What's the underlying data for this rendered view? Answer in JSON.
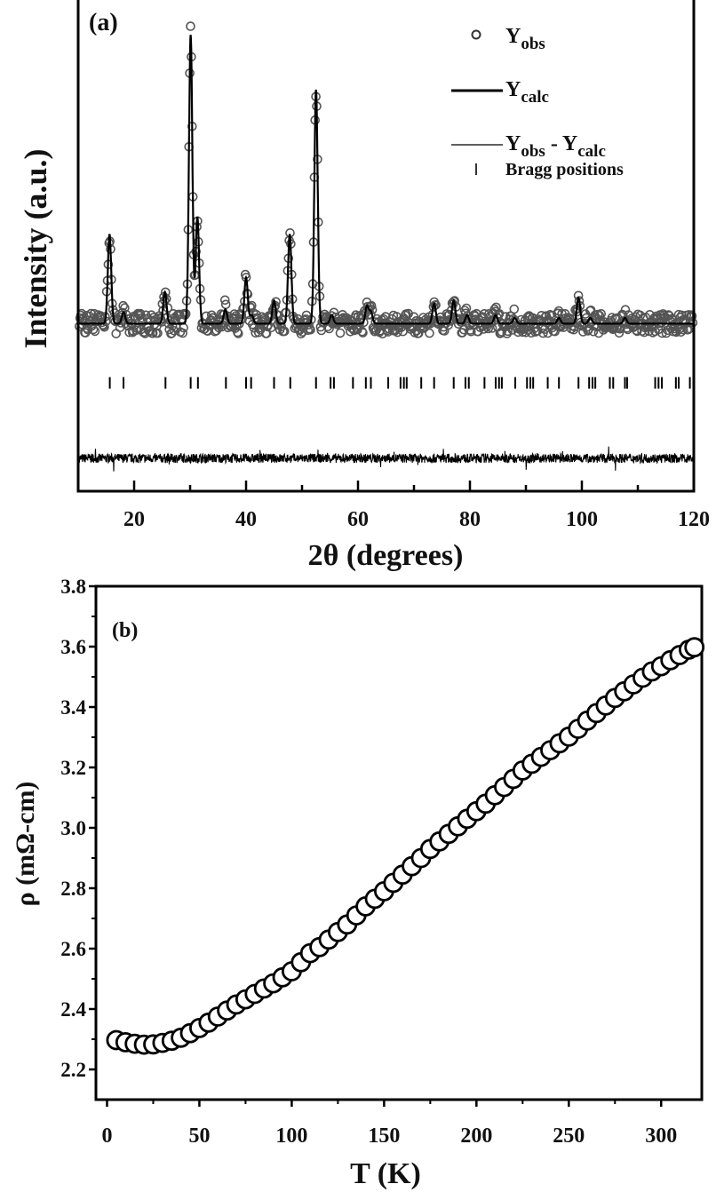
{
  "chart_data": [
    {
      "type": "scatter",
      "panel_label": "(a)",
      "xlabel": "2θ (degrees)",
      "ylabel": "Intensity (a.u.)",
      "xlim": [
        10,
        120
      ],
      "ylim": [
        -58,
        113
      ],
      "xticks": [
        20,
        40,
        60,
        80,
        100,
        120
      ],
      "legend": {
        "placement": "top-right",
        "entries": [
          {
            "main": "Y",
            "sub": "obs",
            "marker": "open-circle"
          },
          {
            "main": "Y",
            "sub": "calc",
            "marker": "thick-line"
          },
          {
            "main": "Y",
            "sub": "obs",
            "mid": " - Y",
            "sub2": "calc",
            "marker": "thin-line"
          },
          {
            "main": "Bragg positions",
            "marker": "vertical-tick"
          }
        ]
      },
      "peaks": [
        {
          "two_theta": 15.6,
          "intensity": 31
        },
        {
          "two_theta": 18.1,
          "intensity": 4
        },
        {
          "two_theta": 25.5,
          "intensity": 11
        },
        {
          "two_theta": 30.1,
          "intensity": 100
        },
        {
          "two_theta": 31.3,
          "intensity": 37
        },
        {
          "two_theta": 36.3,
          "intensity": 5
        },
        {
          "two_theta": 40.0,
          "intensity": 16
        },
        {
          "two_theta": 41.0,
          "intensity": 3
        },
        {
          "two_theta": 45.0,
          "intensity": 8
        },
        {
          "two_theta": 47.8,
          "intensity": 31
        },
        {
          "two_theta": 52.5,
          "intensity": 81
        },
        {
          "two_theta": 55.3,
          "intensity": 3
        },
        {
          "two_theta": 61.6,
          "intensity": 6
        },
        {
          "two_theta": 62.3,
          "intensity": 4
        },
        {
          "two_theta": 73.6,
          "intensity": 7
        },
        {
          "two_theta": 77.1,
          "intensity": 8
        },
        {
          "two_theta": 79.5,
          "intensity": 3
        },
        {
          "two_theta": 84.6,
          "intensity": 3
        },
        {
          "two_theta": 88.0,
          "intensity": 2
        },
        {
          "two_theta": 95.9,
          "intensity": 2
        },
        {
          "two_theta": 99.4,
          "intensity": 9
        },
        {
          "two_theta": 101.5,
          "intensity": 2
        },
        {
          "two_theta": 107.7,
          "intensity": 2
        }
      ],
      "bragg_positions": [
        15.65,
        18.1,
        25.6,
        30.1,
        31.4,
        36.4,
        40.0,
        40.9,
        45.0,
        47.9,
        52.5,
        55.1,
        55.7,
        59.1,
        61.4,
        62.3,
        65.4,
        67.6,
        68.2,
        68.7,
        71.3,
        73.6,
        77.1,
        79.2,
        79.8,
        82.6,
        84.6,
        85.2,
        85.7,
        88.1,
        90.2,
        90.8,
        91.3,
        93.9,
        95.9,
        99.4,
        101.3,
        101.9,
        102.4,
        105.0,
        105.6,
        107.7,
        108.1,
        113.1,
        113.7,
        114.3,
        116.8,
        117.3,
        119.3
      ],
      "difference_offset": -46.6,
      "grid": false
    },
    {
      "type": "scatter",
      "panel_label": "(b)",
      "xlabel": "T (K)",
      "ylabel": "ρ (mΩ-cm)",
      "xlim": [
        -6,
        322
      ],
      "ylim": [
        2.1,
        3.8
      ],
      "xticks": [
        0,
        50,
        100,
        150,
        200,
        250,
        300
      ],
      "yticks": [
        2.2,
        2.4,
        2.6,
        2.8,
        3.0,
        3.2,
        3.4,
        3.6,
        3.8
      ],
      "grid": false,
      "x": [
        5,
        10,
        15,
        20,
        25,
        30,
        35,
        40,
        45,
        50,
        55,
        60,
        65,
        70,
        75,
        80,
        85,
        90,
        95,
        100,
        105,
        110,
        115,
        120,
        125,
        130,
        135,
        140,
        145,
        150,
        155,
        160,
        165,
        170,
        175,
        180,
        185,
        190,
        195,
        200,
        205,
        210,
        215,
        220,
        225,
        230,
        235,
        240,
        245,
        250,
        255,
        260,
        265,
        270,
        275,
        280,
        285,
        290,
        295,
        300,
        305,
        310,
        315,
        318
      ],
      "y": [
        2.297,
        2.29,
        2.285,
        2.282,
        2.283,
        2.288,
        2.295,
        2.305,
        2.32,
        2.337,
        2.355,
        2.375,
        2.395,
        2.415,
        2.432,
        2.45,
        2.468,
        2.485,
        2.505,
        2.525,
        2.555,
        2.585,
        2.605,
        2.63,
        2.655,
        2.68,
        2.71,
        2.74,
        2.765,
        2.79,
        2.818,
        2.845,
        2.873,
        2.9,
        2.93,
        2.955,
        2.98,
        3.005,
        3.03,
        3.055,
        3.08,
        3.108,
        3.135,
        3.162,
        3.19,
        3.212,
        3.235,
        3.257,
        3.28,
        3.302,
        3.328,
        3.355,
        3.38,
        3.405,
        3.43,
        3.452,
        3.475,
        3.497,
        3.518,
        3.535,
        3.555,
        3.572,
        3.59,
        3.598
      ]
    }
  ]
}
